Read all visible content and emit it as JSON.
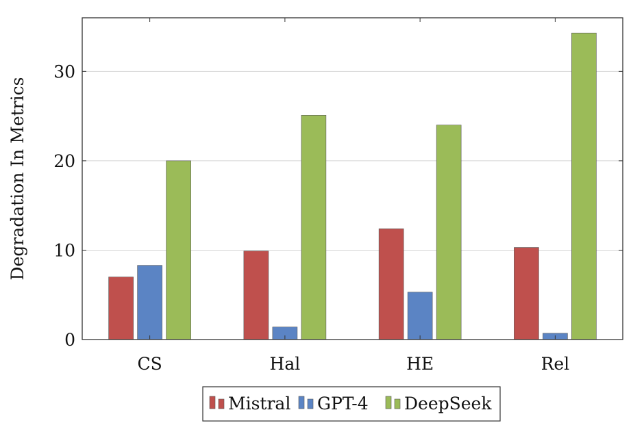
{
  "chart_data": {
    "type": "bar",
    "title": "",
    "xlabel": "",
    "ylabel": "Degradation In Metrics",
    "categories": [
      "CS",
      "Hal",
      "HE",
      "Rel"
    ],
    "ylim": [
      0,
      36
    ],
    "yticks": [
      0,
      10,
      20,
      30
    ],
    "grid": "horizontal",
    "legend_position": "bottom",
    "series": [
      {
        "name": "Mistral",
        "color": "#bf504d",
        "values": [
          7.0,
          9.9,
          12.4,
          10.3
        ]
      },
      {
        "name": "GPT-4",
        "color": "#5b84c4",
        "values": [
          8.3,
          1.4,
          5.3,
          0.7
        ]
      },
      {
        "name": "DeepSeek",
        "color": "#9bbb58",
        "values": [
          20.0,
          25.1,
          24.0,
          34.3
        ]
      }
    ]
  }
}
